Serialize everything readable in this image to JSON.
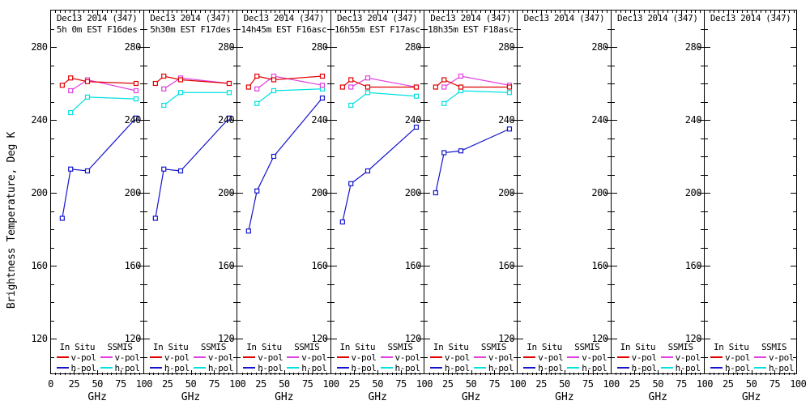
{
  "figure": {
    "ylabel": "Brightness Temperature, Deg K",
    "xlabel": "GHz",
    "background": "#ffffff",
    "axis_color": "#000000",
    "text_color": "#000000"
  },
  "axes": {
    "x_range": [
      0,
      100
    ],
    "y_range": [
      100,
      300
    ],
    "x_ticks_labeled": [
      0,
      25,
      50,
      75,
      100
    ],
    "y_ticks_labeled": [
      280,
      240,
      200,
      160,
      120
    ],
    "x_minor_step": 5,
    "y_minor_step": 10,
    "grid": false
  },
  "legend": {
    "col1_header": "In Situ",
    "col2_header": "SSMIS",
    "vpol_label": "v-pol",
    "hpol_label": "h-pol",
    "position": "bottom of each panel"
  },
  "colors": {
    "insitu_v": "#e10000",
    "insitu_h": "#1414cc",
    "ssmis_v": "#e040e0",
    "ssmis_h": "#00e0e0"
  },
  "chart_data": {
    "type": "line",
    "marker": "open-square",
    "insitu_x": [
      12,
      21,
      39,
      91
    ],
    "ssmis_x": [
      21,
      39,
      91
    ],
    "panels": [
      {
        "title": "Dec13 2014 (347)",
        "subtitle": "5h 0m EST F16des",
        "series": [
          {
            "name": "SSMIS h-pol",
            "color": "ssmis_h",
            "xkey": "ssmis_x",
            "y": [
              244,
              252.5,
              251.5
            ]
          },
          {
            "name": "In Situ h-pol",
            "color": "insitu_h",
            "xkey": "insitu_x",
            "y": [
              186,
              213,
              212,
              241
            ]
          },
          {
            "name": "SSMIS v-pol",
            "color": "ssmis_v",
            "xkey": "ssmis_x",
            "y": [
              256,
              262,
              256
            ]
          },
          {
            "name": "In Situ v-pol",
            "color": "insitu_v",
            "xkey": "insitu_x",
            "y": [
              259,
              263,
              261,
              260
            ]
          }
        ]
      },
      {
        "title": "Dec13 2014 (347)",
        "subtitle": "5h30m EST F17des",
        "series": [
          {
            "name": "SSMIS h-pol",
            "color": "ssmis_h",
            "xkey": "ssmis_x",
            "y": [
              248,
              255,
              255
            ]
          },
          {
            "name": "In Situ h-pol",
            "color": "insitu_h",
            "xkey": "insitu_x",
            "y": [
              186,
              213,
              212,
              241
            ]
          },
          {
            "name": "SSMIS v-pol",
            "color": "ssmis_v",
            "xkey": "ssmis_x",
            "y": [
              257,
              263,
              260
            ]
          },
          {
            "name": "In Situ v-pol",
            "color": "insitu_v",
            "xkey": "insitu_x",
            "y": [
              260,
              264,
              262,
              260
            ]
          }
        ]
      },
      {
        "title": "Dec13 2014 (347)",
        "subtitle": "14h45m EST F16asc",
        "series": [
          {
            "name": "SSMIS h-pol",
            "color": "ssmis_h",
            "xkey": "ssmis_x",
            "y": [
              249,
              256,
              257
            ]
          },
          {
            "name": "In Situ h-pol",
            "color": "insitu_h",
            "xkey": "insitu_x",
            "y": [
              179,
              201,
              220,
              252
            ]
          },
          {
            "name": "SSMIS v-pol",
            "color": "ssmis_v",
            "xkey": "ssmis_x",
            "y": [
              257,
              264,
              259
            ]
          },
          {
            "name": "In Situ v-pol",
            "color": "insitu_v",
            "xkey": "insitu_x",
            "y": [
              258,
              264,
              262,
              264
            ]
          }
        ]
      },
      {
        "title": "Dec13 2014 (347)",
        "subtitle": "16h55m EST F17asc",
        "series": [
          {
            "name": "SSMIS h-pol",
            "color": "ssmis_h",
            "xkey": "ssmis_x",
            "y": [
              248,
              255,
              253
            ]
          },
          {
            "name": "In Situ h-pol",
            "color": "insitu_h",
            "xkey": "insitu_x",
            "y": [
              184,
              205,
              212,
              236
            ]
          },
          {
            "name": "SSMIS v-pol",
            "color": "ssmis_v",
            "xkey": "ssmis_x",
            "y": [
              258,
              263,
              258
            ]
          },
          {
            "name": "In Situ v-pol",
            "color": "insitu_v",
            "xkey": "insitu_x",
            "y": [
              258,
              262,
              258,
              258
            ]
          }
        ]
      },
      {
        "title": "Dec13 2014 (347)",
        "subtitle": "18h35m EST F18asc",
        "series": [
          {
            "name": "SSMIS h-pol",
            "color": "ssmis_h",
            "xkey": "ssmis_x",
            "y": [
              249,
              256,
              255
            ]
          },
          {
            "name": "In Situ h-pol",
            "color": "insitu_h",
            "xkey": "insitu_x",
            "y": [
              200,
              222,
              223,
              235
            ]
          },
          {
            "name": "SSMIS v-pol",
            "color": "ssmis_v",
            "xkey": "ssmis_x",
            "y": [
              258,
              264,
              259
            ]
          },
          {
            "name": "In Situ v-pol",
            "color": "insitu_v",
            "xkey": "insitu_x",
            "y": [
              258,
              262,
              258,
              258
            ]
          }
        ]
      },
      {
        "title": "Dec13 2014 (347)",
        "subtitle": "",
        "series": []
      },
      {
        "title": "Dec13 2014 (347)",
        "subtitle": "",
        "series": []
      },
      {
        "title": "Dec13 2014 (347)",
        "subtitle": "",
        "series": []
      }
    ]
  }
}
